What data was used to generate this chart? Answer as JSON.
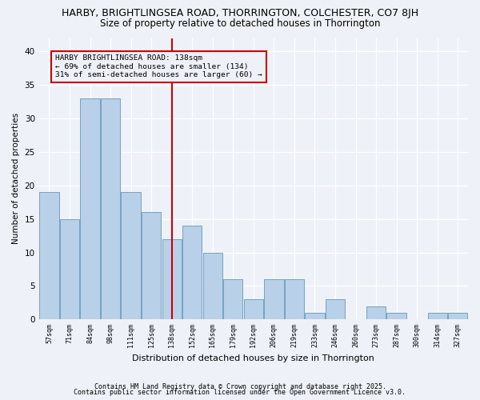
{
  "title1": "HARBY, BRIGHTLINGSEA ROAD, THORRINGTON, COLCHESTER, CO7 8JH",
  "title2": "Size of property relative to detached houses in Thorrington",
  "xlabel": "Distribution of detached houses by size in Thorrington",
  "ylabel": "Number of detached properties",
  "categories": [
    "57sqm",
    "71sqm",
    "84sqm",
    "98sqm",
    "111sqm",
    "125sqm",
    "138sqm",
    "152sqm",
    "165sqm",
    "179sqm",
    "192sqm",
    "206sqm",
    "219sqm",
    "233sqm",
    "246sqm",
    "260sqm",
    "273sqm",
    "287sqm",
    "300sqm",
    "314sqm",
    "327sqm"
  ],
  "values": [
    19,
    15,
    33,
    33,
    19,
    16,
    12,
    14,
    10,
    6,
    3,
    6,
    6,
    1,
    3,
    0,
    2,
    1,
    0,
    1,
    1
  ],
  "bar_color": "#b8d0e8",
  "bar_edge_color": "#6699bb",
  "marker_index": 6,
  "annotation_title": "HARBY BRIGHTLINGSEA ROAD: 138sqm",
  "annotation_line1": "← 69% of detached houses are smaller (134)",
  "annotation_line2": "31% of semi-detached houses are larger (60) →",
  "vline_color": "#cc0000",
  "ylim": [
    0,
    42
  ],
  "yticks": [
    0,
    5,
    10,
    15,
    20,
    25,
    30,
    35,
    40
  ],
  "footer1": "Contains HM Land Registry data © Crown copyright and database right 2025.",
  "footer2": "Contains public sector information licensed under the Open Government Licence v3.0.",
  "bg_color": "#eef2f8"
}
